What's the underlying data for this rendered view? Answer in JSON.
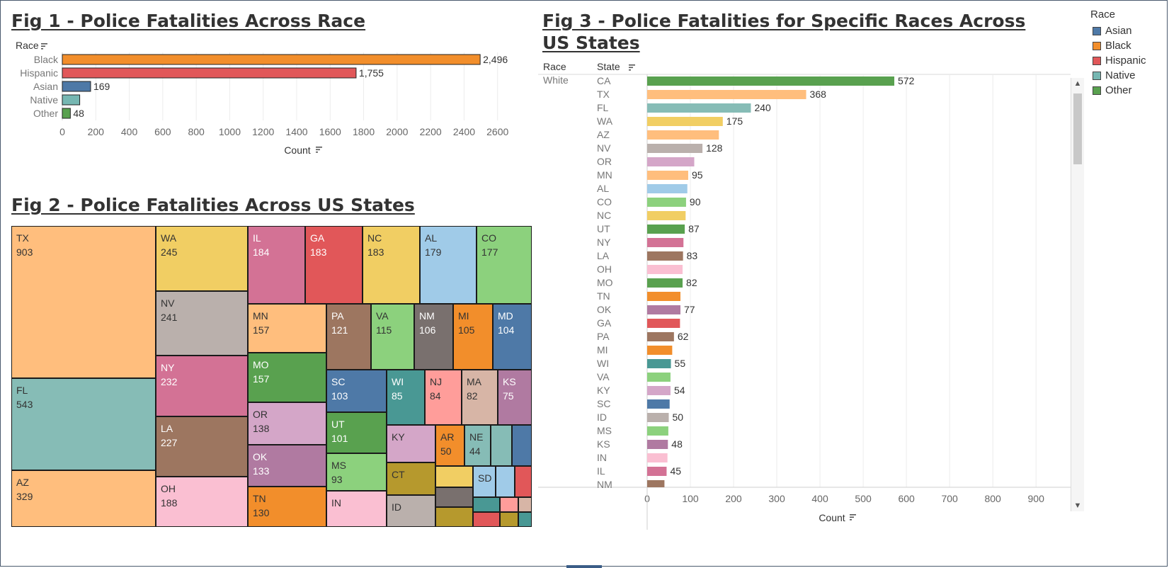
{
  "fig1": {
    "title": "Fig 1 - Police Fatalities Across Race",
    "chart_data": {
      "type": "bar",
      "orientation": "horizontal",
      "title": "Fig 1 - Police Fatalities Across Race",
      "ylabel": "Race",
      "xlabel": "Count",
      "categories": [
        "Black",
        "Hispanic",
        "Asian",
        "Native",
        "Other"
      ],
      "values": [
        2496,
        1755,
        169,
        104,
        48
      ],
      "labels": [
        "2,496",
        "1,755",
        "169",
        "",
        "48"
      ],
      "colors": [
        "#f28e2b",
        "#e15759",
        "#4e79a7",
        "#76b7b2",
        "#59a14f"
      ],
      "xticks": [
        0,
        200,
        400,
        600,
        800,
        1000,
        1200,
        1400,
        1600,
        1800,
        2000,
        2200,
        2400,
        2600
      ],
      "xlim": [
        0,
        2800
      ],
      "grid": true
    }
  },
  "fig2": {
    "title": "Fig 2 - Police Fatalities Across US States",
    "chart_data": {
      "type": "treemap",
      "title": "Fig 2 - Police Fatalities Across US States",
      "items": [
        {
          "state": "TX",
          "value": 903,
          "color": "#ffbe7d"
        },
        {
          "state": "FL",
          "value": 543,
          "color": "#86bcb6"
        },
        {
          "state": "AZ",
          "value": 329,
          "color": "#ffbe7d"
        },
        {
          "state": "WA",
          "value": 245,
          "color": "#f1ce63"
        },
        {
          "state": "NV",
          "value": 241,
          "color": "#bab0ac"
        },
        {
          "state": "NY",
          "value": 232,
          "color": "#d37295"
        },
        {
          "state": "LA",
          "value": 227,
          "color": "#9d7660"
        },
        {
          "state": "OH",
          "value": 188,
          "color": "#fabfd2"
        },
        {
          "state": "IL",
          "value": 184,
          "color": "#d37295"
        },
        {
          "state": "GA",
          "value": 183,
          "color": "#e15759"
        },
        {
          "state": "NC",
          "value": 183,
          "color": "#f1ce63"
        },
        {
          "state": "AL",
          "value": 179,
          "color": "#a0cbe8"
        },
        {
          "state": "CO",
          "value": 177,
          "color": "#8cd17d"
        },
        {
          "state": "MN",
          "value": 157,
          "color": "#ffbe7d"
        },
        {
          "state": "MO",
          "value": 157,
          "color": "#59a14f"
        },
        {
          "state": "OR",
          "value": 138,
          "color": "#d4a6c8"
        },
        {
          "state": "OK",
          "value": 133,
          "color": "#b07aa1"
        },
        {
          "state": "TN",
          "value": 130,
          "color": "#f28e2b"
        },
        {
          "state": "PA",
          "value": 121,
          "color": "#9d7660"
        },
        {
          "state": "VA",
          "value": 115,
          "color": "#8cd17d"
        },
        {
          "state": "NM",
          "value": 106,
          "color": "#79706e"
        },
        {
          "state": "MI",
          "value": 105,
          "color": "#f28e2b"
        },
        {
          "state": "MD",
          "value": 104,
          "color": "#4e79a7"
        },
        {
          "state": "SC",
          "value": 103,
          "color": "#4e79a7"
        },
        {
          "state": "UT",
          "value": 101,
          "color": "#59a14f"
        },
        {
          "state": "MS",
          "value": 93,
          "color": "#8cd17d"
        },
        {
          "state": "IN",
          "value": null,
          "color": "#fabfd2"
        },
        {
          "state": "WI",
          "value": 85,
          "color": "#499894"
        },
        {
          "state": "NJ",
          "value": 84,
          "color": "#ff9d9a"
        },
        {
          "state": "MA",
          "value": 82,
          "color": "#d7b5a6"
        },
        {
          "state": "KS",
          "value": 75,
          "color": "#b07aa1"
        },
        {
          "state": "KY",
          "value": null,
          "color": "#d4a6c8"
        },
        {
          "state": "CT",
          "value": null,
          "color": "#b6992d"
        },
        {
          "state": "ID",
          "value": null,
          "color": "#bab0ac"
        },
        {
          "state": "AR",
          "value": 50,
          "color": "#f28e2b"
        },
        {
          "state": "NE",
          "value": 44,
          "color": "#86bcb6"
        },
        {
          "state": "SD",
          "value": null,
          "color": "#a0cbe8"
        },
        {
          "state": "",
          "value": null,
          "color": "#86bcb6"
        },
        {
          "state": "",
          "value": null,
          "color": "#4e79a7"
        },
        {
          "state": "",
          "value": null,
          "color": "#f1ce63"
        },
        {
          "state": "",
          "value": null,
          "color": "#79706e"
        },
        {
          "state": "",
          "value": null,
          "color": "#b6992d"
        },
        {
          "state": "",
          "value": null,
          "color": "#a0cbe8"
        },
        {
          "state": "",
          "value": null,
          "color": "#e15759"
        },
        {
          "state": "",
          "value": null,
          "color": "#499894"
        },
        {
          "state": "",
          "value": null,
          "color": "#ff9d9a"
        },
        {
          "state": "",
          "value": null,
          "color": "#d7b5a6"
        },
        {
          "state": "",
          "value": null,
          "color": "#e15759"
        },
        {
          "state": "",
          "value": null,
          "color": "#b6992d"
        },
        {
          "state": "",
          "value": null,
          "color": "#499894"
        }
      ]
    }
  },
  "fig3": {
    "title": "Fig 3 - Police Fatalities for Specific Races Across US States",
    "race_header": "Race",
    "state_header": "State",
    "race_value": "White",
    "chart_data": {
      "type": "bar",
      "orientation": "horizontal",
      "title": "Fig 3 - Police Fatalities for Specific Races Across US States",
      "xlabel": "Count",
      "xticks": [
        0,
        100,
        200,
        300,
        400,
        500,
        600,
        700,
        800,
        900
      ],
      "xlim": [
        0,
        980
      ],
      "grid": true,
      "rows": [
        {
          "state": "CA",
          "value": 572,
          "label": "572",
          "color": "#59a14f"
        },
        {
          "state": "TX",
          "value": 368,
          "label": "368",
          "color": "#ffbe7d"
        },
        {
          "state": "FL",
          "value": 240,
          "label": "240",
          "color": "#86bcb6"
        },
        {
          "state": "WA",
          "value": 175,
          "label": "175",
          "color": "#f1ce63"
        },
        {
          "state": "AZ",
          "value": 166,
          "label": "",
          "color": "#ffbe7d"
        },
        {
          "state": "NV",
          "value": 128,
          "label": "128",
          "color": "#bab0ac"
        },
        {
          "state": "OR",
          "value": 109,
          "label": "",
          "color": "#d4a6c8"
        },
        {
          "state": "MN",
          "value": 95,
          "label": "95",
          "color": "#ffbe7d"
        },
        {
          "state": "AL",
          "value": 93,
          "label": "",
          "color": "#a0cbe8"
        },
        {
          "state": "CO",
          "value": 90,
          "label": "90",
          "color": "#8cd17d"
        },
        {
          "state": "NC",
          "value": 89,
          "label": "",
          "color": "#f1ce63"
        },
        {
          "state": "UT",
          "value": 87,
          "label": "87",
          "color": "#59a14f"
        },
        {
          "state": "NY",
          "value": 84,
          "label": "",
          "color": "#d37295"
        },
        {
          "state": "LA",
          "value": 83,
          "label": "83",
          "color": "#9d7660"
        },
        {
          "state": "OH",
          "value": 82,
          "label": "",
          "color": "#fabfd2"
        },
        {
          "state": "MO",
          "value": 82,
          "label": "82",
          "color": "#59a14f"
        },
        {
          "state": "TN",
          "value": 77,
          "label": "",
          "color": "#f28e2b"
        },
        {
          "state": "OK",
          "value": 77,
          "label": "77",
          "color": "#b07aa1"
        },
        {
          "state": "GA",
          "value": 76,
          "label": "",
          "color": "#e15759"
        },
        {
          "state": "PA",
          "value": 62,
          "label": "62",
          "color": "#9d7660"
        },
        {
          "state": "MI",
          "value": 58,
          "label": "",
          "color": "#f28e2b"
        },
        {
          "state": "WI",
          "value": 55,
          "label": "55",
          "color": "#499894"
        },
        {
          "state": "VA",
          "value": 54,
          "label": "",
          "color": "#8cd17d"
        },
        {
          "state": "KY",
          "value": 54,
          "label": "54",
          "color": "#d4a6c8"
        },
        {
          "state": "SC",
          "value": 52,
          "label": "",
          "color": "#4e79a7"
        },
        {
          "state": "ID",
          "value": 50,
          "label": "50",
          "color": "#bab0ac"
        },
        {
          "state": "MS",
          "value": 49,
          "label": "",
          "color": "#8cd17d"
        },
        {
          "state": "KS",
          "value": 48,
          "label": "48",
          "color": "#b07aa1"
        },
        {
          "state": "IN",
          "value": 47,
          "label": "",
          "color": "#fabfd2"
        },
        {
          "state": "IL",
          "value": 45,
          "label": "45",
          "color": "#d37295"
        },
        {
          "state": "NM",
          "value": 40,
          "label": "",
          "color": "#9d7660"
        }
      ]
    }
  },
  "legend": {
    "title": "Race",
    "items": [
      {
        "label": "Asian",
        "color": "#4e79a7"
      },
      {
        "label": "Black",
        "color": "#f28e2b"
      },
      {
        "label": "Hispanic",
        "color": "#e15759"
      },
      {
        "label": "Native",
        "color": "#76b7b2"
      },
      {
        "label": "Other",
        "color": "#59a14f"
      }
    ]
  }
}
